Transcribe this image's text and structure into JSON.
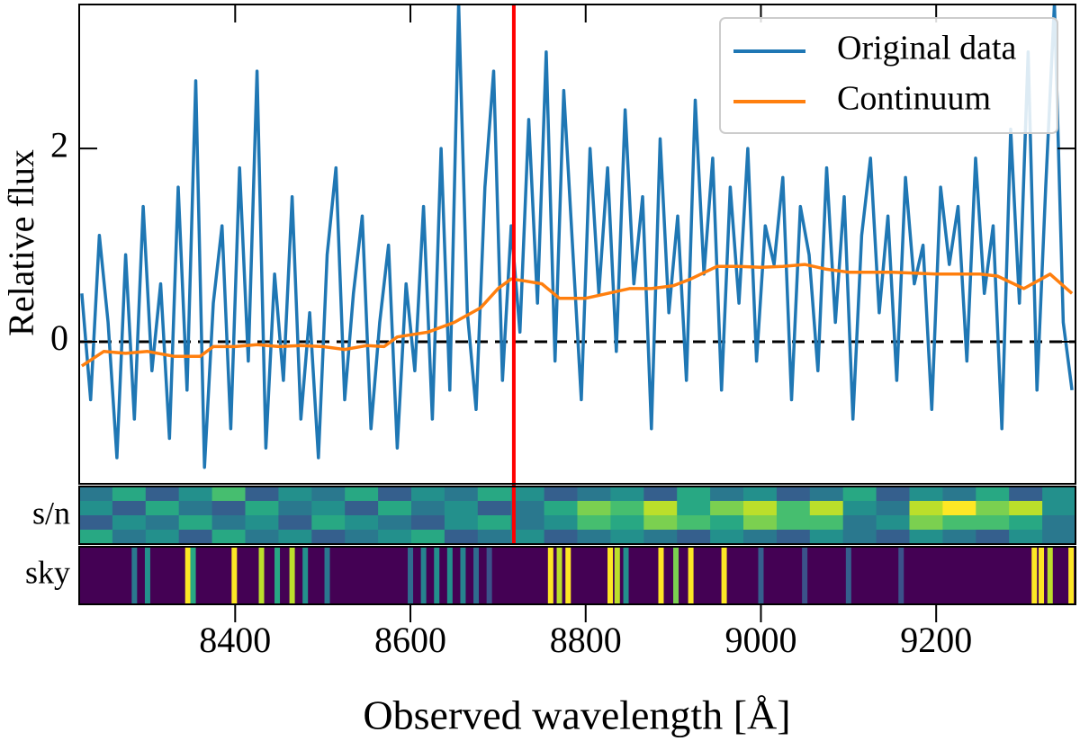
{
  "chart_data": {
    "type": "line",
    "xlabel": "Observed wavelength [Å]",
    "ylabel": "Relative flux",
    "xlim": [
      8222,
      9359
    ],
    "ylim": [
      -1.47,
      3.49
    ],
    "xticks": [
      8400,
      8600,
      8800,
      9000,
      9200
    ],
    "yticks": [
      0,
      2
    ],
    "legend": "upper right",
    "hline": 0,
    "vline": 8718,
    "vline_color": "#ff0000",
    "series": [
      {
        "name": "Original data",
        "color": "#1f77b4",
        "x": [
          8225,
          8235,
          8245,
          8255,
          8265,
          8275,
          8285,
          8295,
          8305,
          8315,
          8325,
          8335,
          8345,
          8355,
          8365,
          8375,
          8385,
          8395,
          8405,
          8415,
          8425,
          8435,
          8445,
          8455,
          8465,
          8475,
          8485,
          8495,
          8505,
          8515,
          8525,
          8535,
          8545,
          8555,
          8565,
          8575,
          8585,
          8595,
          8605,
          8615,
          8625,
          8635,
          8645,
          8655,
          8665,
          8675,
          8685,
          8695,
          8705,
          8715,
          8725,
          8735,
          8745,
          8755,
          8765,
          8775,
          8785,
          8795,
          8805,
          8815,
          8825,
          8835,
          8845,
          8855,
          8865,
          8875,
          8885,
          8895,
          8905,
          8915,
          8925,
          8935,
          8945,
          8955,
          8965,
          8975,
          8985,
          8995,
          9005,
          9015,
          9025,
          9035,
          9045,
          9055,
          9065,
          9075,
          9085,
          9095,
          9105,
          9115,
          9125,
          9135,
          9145,
          9155,
          9165,
          9175,
          9185,
          9195,
          9205,
          9215,
          9225,
          9235,
          9245,
          9255,
          9265,
          9275,
          9285,
          9295,
          9305,
          9315,
          9325,
          9335,
          9345,
          9355
        ],
        "values": [
          0.5,
          -0.6,
          1.1,
          0.2,
          -1.2,
          0.9,
          -0.8,
          1.4,
          -0.3,
          0.6,
          -1.0,
          1.6,
          -0.5,
          2.7,
          -1.3,
          0.4,
          1.2,
          -0.9,
          1.8,
          -0.2,
          2.8,
          -1.1,
          0.7,
          -0.4,
          1.5,
          -0.8,
          0.3,
          -1.2,
          0.9,
          1.8,
          -0.6,
          0.5,
          1.3,
          -0.9,
          0.2,
          1.0,
          -1.1,
          0.6,
          -0.3,
          1.4,
          -0.8,
          2.0,
          -0.5,
          3.5,
          0.3,
          -0.7,
          1.6,
          2.8,
          -0.4,
          1.2,
          0.1,
          2.3,
          0.4,
          3.0,
          -0.2,
          2.6,
          1.0,
          -0.6,
          2.0,
          0.5,
          1.8,
          -0.1,
          2.4,
          0.6,
          1.5,
          -0.9,
          2.1,
          0.3,
          1.3,
          -0.4,
          2.5,
          0.7,
          1.9,
          -0.5,
          1.6,
          0.4,
          2.0,
          -0.2,
          1.2,
          0.8,
          1.7,
          -0.6,
          1.4,
          0.9,
          -0.3,
          1.8,
          0.2,
          1.5,
          -0.8,
          1.1,
          1.9,
          0.3,
          1.3,
          -0.4,
          1.7,
          0.6,
          1.0,
          -0.7,
          1.6,
          0.8,
          1.4,
          -0.2,
          1.9,
          0.5,
          1.2,
          -0.9,
          2.2,
          0.4,
          3.0,
          -0.5,
          1.6,
          3.5,
          0.2,
          -0.5
        ]
      },
      {
        "name": "Continuum",
        "color": "#ff7f0e",
        "x": [
          8225,
          8250,
          8275,
          8300,
          8330,
          8360,
          8375,
          8400,
          8425,
          8450,
          8475,
          8500,
          8525,
          8550,
          8570,
          8585,
          8620,
          8650,
          8680,
          8700,
          8715,
          8730,
          8750,
          8770,
          8800,
          8825,
          8850,
          8875,
          8900,
          8920,
          8950,
          8975,
          9000,
          9025,
          9050,
          9075,
          9100,
          9150,
          9200,
          9250,
          9270,
          9300,
          9330,
          9355
        ],
        "values": [
          -0.25,
          -0.1,
          -0.12,
          -0.1,
          -0.15,
          -0.15,
          -0.05,
          -0.05,
          -0.03,
          -0.05,
          -0.04,
          -0.05,
          -0.08,
          -0.04,
          -0.05,
          0.05,
          0.1,
          0.2,
          0.35,
          0.55,
          0.65,
          0.63,
          0.6,
          0.45,
          0.45,
          0.5,
          0.55,
          0.55,
          0.58,
          0.65,
          0.78,
          0.78,
          0.77,
          0.78,
          0.8,
          0.75,
          0.72,
          0.72,
          0.7,
          0.7,
          0.68,
          0.55,
          0.7,
          0.5
        ]
      }
    ],
    "panels": [
      {
        "label": "s/n",
        "colormap": "viridis",
        "rows": [
          [
            0.4,
            0.6,
            0.3,
            0.5,
            0.7,
            0.3,
            0.5,
            0.4,
            0.6,
            0.3,
            0.5,
            0.4,
            0.6,
            0.5,
            0.3,
            0.4,
            0.5,
            0.3,
            0.6,
            0.4,
            0.5,
            0.3,
            0.4,
            0.6,
            0.3,
            0.5,
            0.4,
            0.6,
            0.3,
            0.5
          ],
          [
            0.5,
            0.3,
            0.6,
            0.4,
            0.3,
            0.6,
            0.4,
            0.5,
            0.3,
            0.6,
            0.4,
            0.5,
            0.3,
            0.4,
            0.6,
            0.8,
            0.7,
            0.9,
            0.6,
            0.8,
            0.9,
            0.7,
            0.9,
            0.5,
            0.4,
            0.9,
            1.0,
            0.8,
            0.9,
            0.5
          ],
          [
            0.3,
            0.5,
            0.4,
            0.6,
            0.4,
            0.5,
            0.3,
            0.6,
            0.5,
            0.4,
            0.3,
            0.5,
            0.6,
            0.4,
            0.5,
            0.7,
            0.6,
            0.8,
            0.7,
            0.6,
            0.8,
            0.7,
            0.7,
            0.4,
            0.5,
            0.8,
            0.7,
            0.7,
            0.6,
            0.4
          ],
          [
            0.6,
            0.4,
            0.5,
            0.3,
            0.6,
            0.4,
            0.5,
            0.3,
            0.4,
            0.5,
            0.6,
            0.3,
            0.4,
            0.5,
            0.3,
            0.4,
            0.5,
            0.4,
            0.3,
            0.5,
            0.4,
            0.3,
            0.5,
            0.4,
            0.3,
            0.5,
            0.4,
            0.3,
            0.5,
            0.4
          ]
        ]
      },
      {
        "label": "sky",
        "colormap": "viridis",
        "x": [
          8285,
          8300,
          8346,
          8352,
          8399,
          8430,
          8448,
          8465,
          8480,
          8505,
          8600,
          8615,
          8630,
          8645,
          8660,
          8675,
          8690,
          8760,
          8770,
          8780,
          8828,
          8836,
          8846,
          8886,
          8903,
          8920,
          8958,
          9000,
          9050,
          9100,
          9160,
          9312,
          9320,
          9330,
          9354
        ],
        "values": [
          0.4,
          0.5,
          1.0,
          0.6,
          1.0,
          0.9,
          0.6,
          0.9,
          0.5,
          0.4,
          0.35,
          0.45,
          0.5,
          0.5,
          0.45,
          0.35,
          0.25,
          1.0,
          0.9,
          1.0,
          1.0,
          0.9,
          0.5,
          1.0,
          0.8,
          1.0,
          1.0,
          0.3,
          0.25,
          0.3,
          0.25,
          1.0,
          1.0,
          0.9,
          1.0
        ]
      }
    ]
  }
}
